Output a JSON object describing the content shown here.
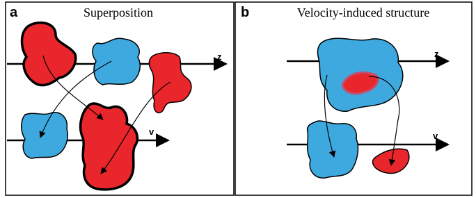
{
  "panels": [
    {
      "label": "a",
      "title": "Superposition",
      "axes": [
        "z",
        "v"
      ]
    },
    {
      "label": "b",
      "title": "Velocity-induced structure",
      "axes": [
        "z",
        "v"
      ]
    }
  ]
}
